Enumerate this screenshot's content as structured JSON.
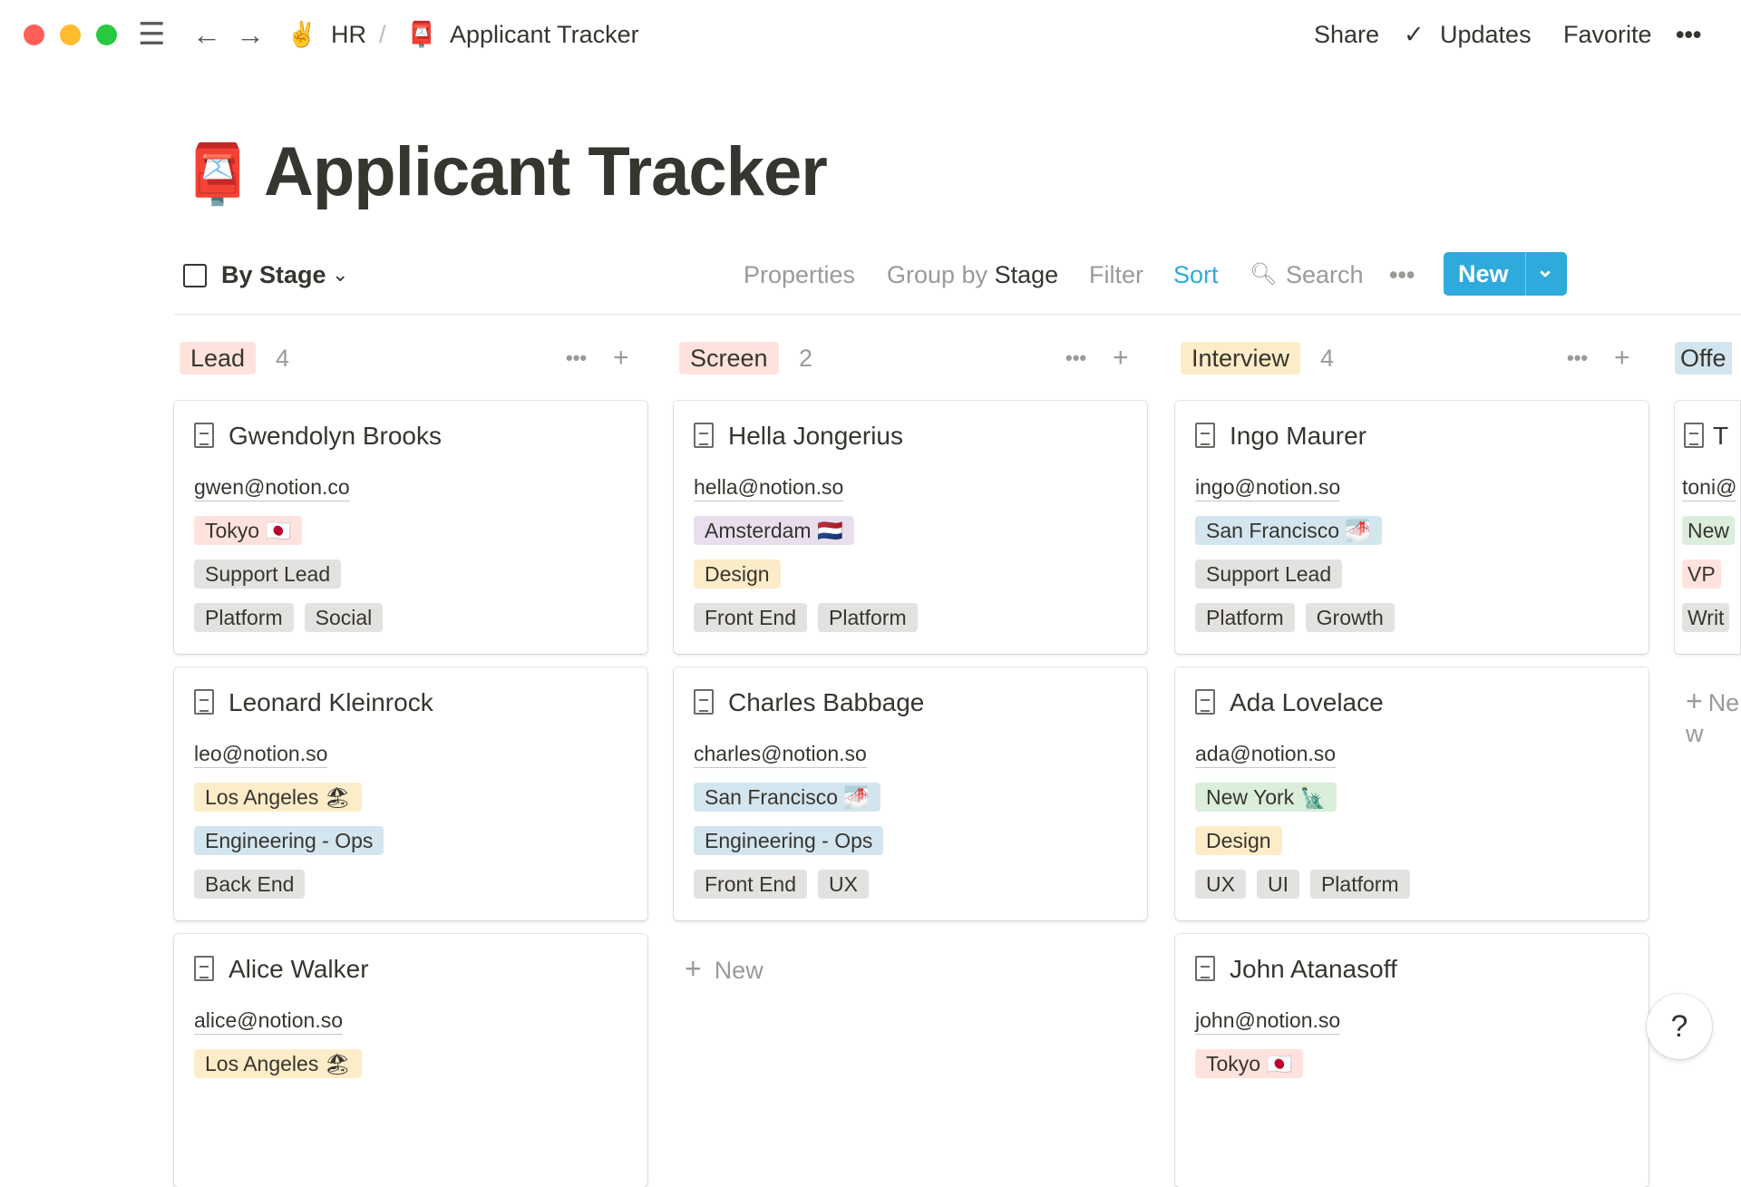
{
  "topbar": {
    "breadcrumb_workspace": "HR",
    "breadcrumb_workspace_emoji": "✌️",
    "breadcrumb_separator": "/",
    "breadcrumb_page": "Applicant Tracker",
    "breadcrumb_page_emoji": "📮",
    "share": "Share",
    "updates": "Updates",
    "favorite": "Favorite",
    "more": "•••"
  },
  "page": {
    "title": "Applicant Tracker",
    "emoji": "📮"
  },
  "toolbar": {
    "view": "By Stage",
    "properties": "Properties",
    "group_by_prefix": "Group by",
    "group_by_value": "Stage",
    "filter": "Filter",
    "sort": "Sort",
    "search": "Search",
    "more": "•••",
    "new": "New",
    "accent": "#2eaadc"
  },
  "colors": {
    "red": "#ffe2dd",
    "purple": "#e8deee",
    "yellow": "#fdecc8",
    "blue": "#d3e5ef",
    "gray": "#e3e2e0",
    "green": "#dbeddb"
  },
  "board": {
    "add_new": "New",
    "columns": [
      {
        "stage": "Lead",
        "color": "red",
        "count": "4",
        "cards": [
          {
            "name": "Gwendolyn Brooks",
            "email": "gwen@notion.co",
            "rows": [
              [
                {
                  "label": "Tokyo 🇯🇵",
                  "color": "red"
                }
              ],
              [
                {
                  "label": "Support Lead",
                  "color": "gray"
                }
              ],
              [
                {
                  "label": "Platform",
                  "color": "gray"
                },
                {
                  "label": "Social",
                  "color": "gray"
                }
              ]
            ]
          },
          {
            "name": "Leonard Kleinrock",
            "email": "leo@notion.so",
            "rows": [
              [
                {
                  "label": "Los Angeles 🏖",
                  "color": "yellow"
                }
              ],
              [
                {
                  "label": "Engineering - Ops",
                  "color": "blue"
                }
              ],
              [
                {
                  "label": "Back End",
                  "color": "gray"
                }
              ]
            ]
          },
          {
            "name": "Alice Walker",
            "email": "alice@notion.so",
            "rows": [
              [
                {
                  "label": "Los Angeles 🏖",
                  "color": "yellow"
                }
              ]
            ]
          }
        ]
      },
      {
        "stage": "Screen",
        "color": "red",
        "count": "2",
        "cards": [
          {
            "name": "Hella Jongerius",
            "email": "hella@notion.so",
            "rows": [
              [
                {
                  "label": "Amsterdam 🇳🇱",
                  "color": "purple"
                }
              ],
              [
                {
                  "label": "Design",
                  "color": "yellow"
                }
              ],
              [
                {
                  "label": "Front End",
                  "color": "gray"
                },
                {
                  "label": "Platform",
                  "color": "gray"
                }
              ]
            ]
          },
          {
            "name": "Charles Babbage",
            "email": "charles@notion.so",
            "rows": [
              [
                {
                  "label": "San Francisco 🌁",
                  "color": "blue"
                }
              ],
              [
                {
                  "label": "Engineering - Ops",
                  "color": "blue"
                }
              ],
              [
                {
                  "label": "Front End",
                  "color": "gray"
                },
                {
                  "label": "UX",
                  "color": "gray"
                }
              ]
            ]
          }
        ]
      },
      {
        "stage": "Interview",
        "color": "yellow",
        "count": "4",
        "cards": [
          {
            "name": "Ingo Maurer",
            "email": "ingo@notion.so",
            "rows": [
              [
                {
                  "label": "San Francisco 🌁",
                  "color": "blue"
                }
              ],
              [
                {
                  "label": "Support Lead",
                  "color": "gray"
                }
              ],
              [
                {
                  "label": "Platform",
                  "color": "gray"
                },
                {
                  "label": "Growth",
                  "color": "gray"
                }
              ]
            ]
          },
          {
            "name": "Ada Lovelace",
            "email": "ada@notion.so",
            "rows": [
              [
                {
                  "label": "New York 🗽",
                  "color": "green"
                }
              ],
              [
                {
                  "label": "Design",
                  "color": "yellow"
                }
              ],
              [
                {
                  "label": "UX",
                  "color": "gray"
                },
                {
                  "label": "UI",
                  "color": "gray"
                },
                {
                  "label": "Platform",
                  "color": "gray"
                }
              ]
            ]
          },
          {
            "name": "John Atanasoff",
            "email": "john@notion.so",
            "rows": [
              [
                {
                  "label": "Tokyo 🇯🇵",
                  "color": "red"
                }
              ]
            ]
          }
        ]
      },
      {
        "stage": "Offe",
        "color": "blue",
        "count": "",
        "cards": [
          {
            "name": "T",
            "email": "toni@",
            "rows": [
              [
                {
                  "label": "New",
                  "color": "green"
                }
              ],
              [
                {
                  "label": "VP",
                  "color": "red"
                }
              ],
              [
                {
                  "label": "Writ",
                  "color": "gray"
                }
              ]
            ]
          }
        ]
      }
    ]
  },
  "help": "?"
}
